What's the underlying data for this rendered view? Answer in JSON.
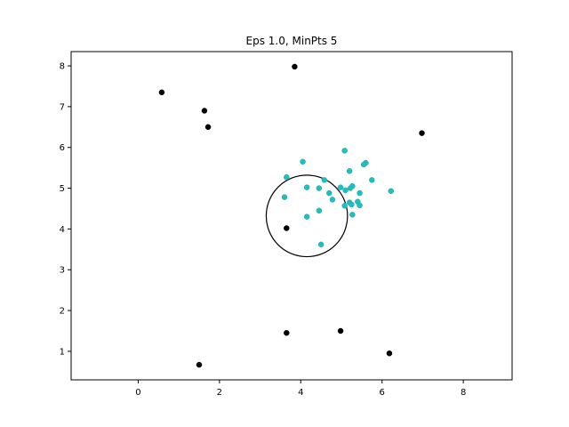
{
  "chart_data": {
    "type": "scatter",
    "title": "Eps 1.0, MinPts 5",
    "xlabel": "",
    "ylabel": "",
    "xlim": [
      -1.65,
      9.2
    ],
    "ylim": [
      0.3,
      8.35
    ],
    "xticks": [
      0,
      2,
      4,
      6,
      8
    ],
    "yticks": [
      1,
      2,
      3,
      4,
      5,
      6,
      7,
      8
    ],
    "grid": false,
    "legend": "none",
    "series": [
      {
        "color": "#1fbfbf",
        "points": [
          [
            5.08,
            5.92
          ],
          [
            4.05,
            5.65
          ],
          [
            5.6,
            5.62
          ],
          [
            5.55,
            5.58
          ],
          [
            5.2,
            5.42
          ],
          [
            3.65,
            5.27
          ],
          [
            4.58,
            5.2
          ],
          [
            5.75,
            5.2
          ],
          [
            4.15,
            5.02
          ],
          [
            4.45,
            5.0
          ],
          [
            4.98,
            5.02
          ],
          [
            5.27,
            5.05
          ],
          [
            5.22,
            5.0
          ],
          [
            5.1,
            4.95
          ],
          [
            6.22,
            4.93
          ],
          [
            4.7,
            4.88
          ],
          [
            5.45,
            4.88
          ],
          [
            3.6,
            4.78
          ],
          [
            4.78,
            4.72
          ],
          [
            5.4,
            4.67
          ],
          [
            5.2,
            4.65
          ],
          [
            5.25,
            4.6
          ],
          [
            5.08,
            4.57
          ],
          [
            5.45,
            4.58
          ],
          [
            4.45,
            4.45
          ],
          [
            5.27,
            4.35
          ],
          [
            4.15,
            4.3
          ],
          [
            4.5,
            3.62
          ]
        ]
      },
      {
        "color": "#000000",
        "points": [
          [
            3.85,
            7.98
          ],
          [
            0.58,
            7.35
          ],
          [
            1.63,
            6.9
          ],
          [
            1.72,
            6.5
          ],
          [
            6.98,
            6.35
          ],
          [
            3.65,
            4.02
          ],
          [
            3.65,
            1.45
          ],
          [
            4.98,
            1.5
          ],
          [
            1.5,
            0.67
          ],
          [
            6.18,
            0.95
          ]
        ]
      }
    ],
    "annotations": [
      {
        "type": "circle",
        "center": [
          4.15,
          4.32
        ],
        "radius": 1.0,
        "color": "#000000"
      }
    ]
  }
}
